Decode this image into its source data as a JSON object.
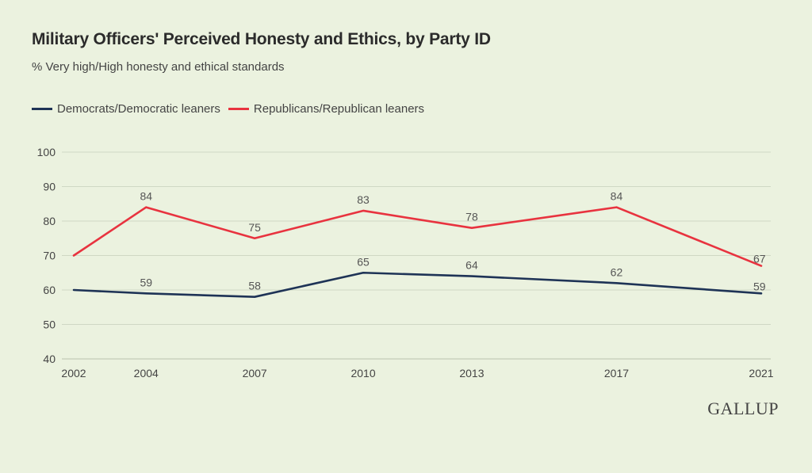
{
  "title": "Military Officers' Perceived Honesty and Ethics, by Party ID",
  "subtitle": "% Very high/High honesty and ethical standards",
  "logo": "GALLUP",
  "colors": {
    "democrats": "#1e3356",
    "republicans": "#e8333f",
    "grid": "#cfd8c4",
    "background": "#ebf2df"
  },
  "chart_data": {
    "type": "line",
    "title": "Military Officers' Perceived Honesty and Ethics, by Party ID",
    "subtitle": "% Very high/High honesty and ethical standards",
    "x": [
      "2002",
      "2004",
      "2007",
      "2010",
      "2013",
      "2017",
      "2021"
    ],
    "ylim": [
      40,
      100
    ],
    "yticks": [
      40,
      50,
      60,
      70,
      80,
      90,
      100
    ],
    "grid": true,
    "legend_position": "top-left",
    "series": [
      {
        "name": "Democrats/Democratic leaners",
        "color": "#1e3356",
        "values": [
          60,
          59,
          58,
          65,
          64,
          62,
          59
        ],
        "labeled": [
          false,
          true,
          true,
          true,
          true,
          true,
          true
        ]
      },
      {
        "name": "Republicans/Republican leaners",
        "color": "#e8333f",
        "values": [
          70,
          84,
          75,
          83,
          78,
          84,
          67
        ],
        "labeled": [
          false,
          true,
          true,
          true,
          true,
          true,
          true
        ]
      }
    ]
  }
}
